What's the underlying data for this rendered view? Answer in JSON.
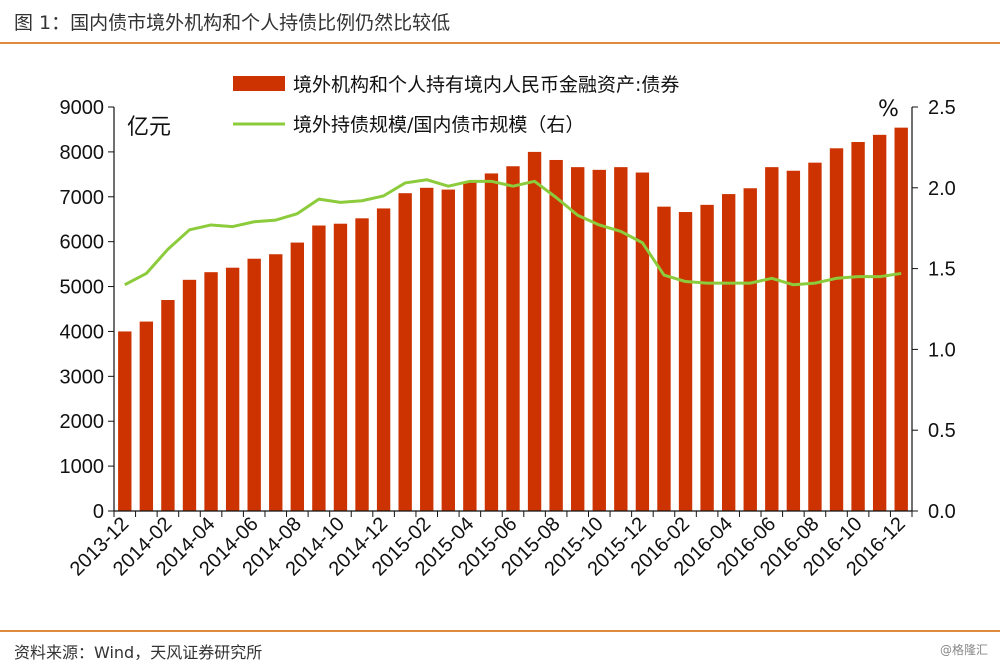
{
  "header": {
    "title": "图 1：国内债市境外机构和个人持债比例仍然比较低"
  },
  "footer": {
    "source": "资料来源：Wind，天风证券研究所",
    "watermark": "@格隆汇"
  },
  "colors": {
    "bar": "#cc3300",
    "line": "#8ccc3c",
    "rule": "#e08a3c"
  },
  "chart_data": {
    "type": "bar",
    "categories": [
      "2013-12",
      "2014-01",
      "2014-02",
      "2014-03",
      "2014-04",
      "2014-05",
      "2014-06",
      "2014-07",
      "2014-08",
      "2014-09",
      "2014-10",
      "2014-11",
      "2014-12",
      "2015-01",
      "2015-02",
      "2015-03",
      "2015-04",
      "2015-05",
      "2015-06",
      "2015-07",
      "2015-08",
      "2015-09",
      "2015-10",
      "2015-11",
      "2015-12",
      "2016-01",
      "2016-02",
      "2016-03",
      "2016-04",
      "2016-05",
      "2016-06",
      "2016-07",
      "2016-08",
      "2016-09",
      "2016-10",
      "2016-11",
      "2016-12"
    ],
    "x_tick_labels": [
      "2013-12",
      "2014-02",
      "2014-04",
      "2014-06",
      "2014-08",
      "2014-10",
      "2014-12",
      "2015-02",
      "2015-04",
      "2015-06",
      "2015-08",
      "2015-10",
      "2015-12",
      "2016-02",
      "2016-04",
      "2016-06",
      "2016-08",
      "2016-10",
      "2016-12"
    ],
    "series": [
      {
        "name": "境外机构和个人持有境内人民币金融资产:债券",
        "type": "bar",
        "axis": "left",
        "values": [
          4000,
          4220,
          4700,
          5150,
          5320,
          5420,
          5620,
          5720,
          5980,
          6360,
          6400,
          6520,
          6740,
          7080,
          7200,
          7160,
          7340,
          7520,
          7680,
          8000,
          7820,
          7660,
          7600,
          7660,
          7540,
          6780,
          6660,
          6820,
          7060,
          7190,
          7660,
          7580,
          7760,
          8080,
          8220,
          8380,
          8540
        ]
      },
      {
        "name": "境外持债规模/国内债市规模（右）",
        "type": "line",
        "axis": "right",
        "values": [
          1.4,
          1.47,
          1.62,
          1.74,
          1.77,
          1.76,
          1.79,
          1.8,
          1.84,
          1.93,
          1.91,
          1.92,
          1.95,
          2.03,
          2.05,
          2.01,
          2.04,
          2.04,
          2.01,
          2.04,
          1.94,
          1.83,
          1.77,
          1.73,
          1.66,
          1.46,
          1.42,
          1.41,
          1.41,
          1.41,
          1.44,
          1.4,
          1.41,
          1.44,
          1.45,
          1.45,
          1.47
        ]
      }
    ],
    "y_left": {
      "unit": "亿元",
      "ylim": [
        0,
        9000
      ],
      "ticks": [
        "0",
        "1000",
        "2000",
        "3000",
        "4000",
        "5000",
        "6000",
        "7000",
        "8000",
        "9000"
      ]
    },
    "y_right": {
      "unit": "%",
      "ylim": [
        0,
        2.5
      ],
      "ticks": [
        "0.0",
        "0.5",
        "1.0",
        "1.5",
        "2.0",
        "2.5"
      ]
    },
    "grid": false,
    "legend": "top-center"
  }
}
